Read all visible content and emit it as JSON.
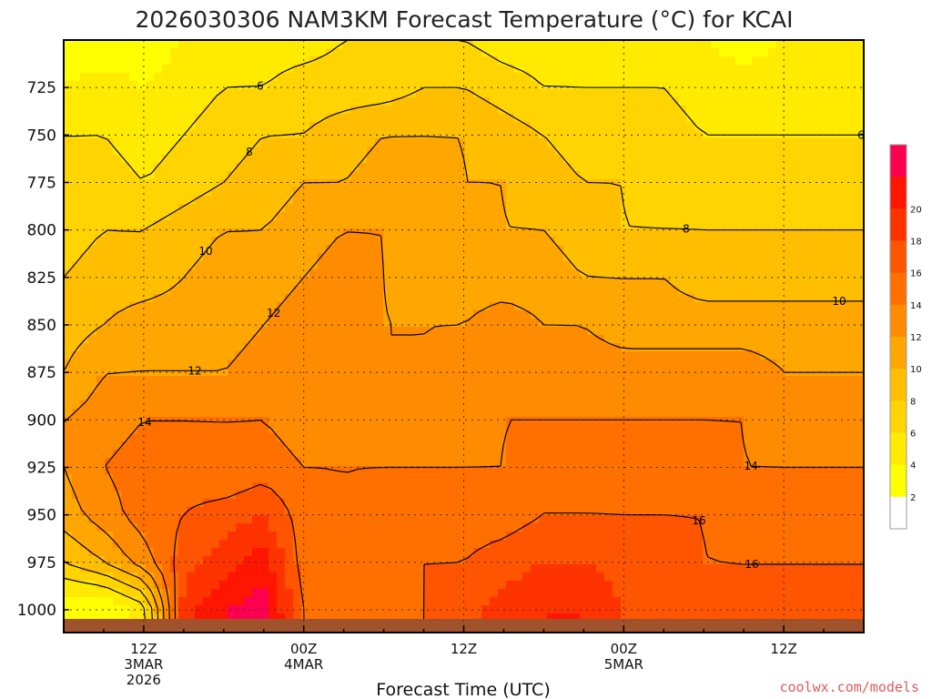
{
  "chart_data": {
    "type": "heatmap",
    "title": "2026030306 NAM3KM Forecast Temperature (°C) for KCAI",
    "xlabel": "Forecast Time (UTC)",
    "ylabel": "",
    "y_ticks": [
      725,
      750,
      775,
      800,
      825,
      850,
      875,
      900,
      925,
      950,
      975,
      1000
    ],
    "ylim": [
      1012,
      700
    ],
    "x_hours": [
      6,
      9,
      12,
      15,
      18,
      21,
      24,
      27,
      30,
      33,
      36,
      39,
      42,
      45,
      48,
      51,
      54,
      57,
      60
    ],
    "x_ticks": [
      {
        "hour": 12,
        "lines": [
          "12Z",
          "3MAR",
          "2026"
        ]
      },
      {
        "hour": 24,
        "lines": [
          "00Z",
          "4MAR"
        ]
      },
      {
        "hour": 36,
        "lines": [
          "12Z"
        ]
      },
      {
        "hour": 48,
        "lines": [
          "00Z",
          "5MAR"
        ]
      },
      {
        "hour": 60,
        "lines": [
          "12Z"
        ]
      }
    ],
    "xlim": [
      6,
      66
    ],
    "temperature_rows": [
      {
        "p": 700,
        "t": [
          3,
          2,
          3,
          4,
          5,
          5,
          5,
          6,
          6,
          6,
          6,
          5,
          5,
          5,
          5,
          5,
          4,
          3,
          4
        ]
      },
      {
        "p": 725,
        "t": [
          4,
          5,
          4,
          5,
          6,
          6,
          7,
          7,
          7,
          8,
          8,
          7,
          6,
          6,
          6,
          6,
          5,
          5,
          5
        ]
      },
      {
        "p": 750,
        "t": [
          6,
          6,
          5,
          6,
          7,
          8,
          8,
          9,
          10,
          10,
          10,
          9,
          8,
          7,
          7,
          7,
          6,
          6,
          6
        ]
      },
      {
        "p": 775,
        "t": [
          7,
          7,
          6,
          7,
          8,
          9,
          10,
          10,
          11,
          11,
          10,
          10,
          9,
          8,
          8,
          7,
          7,
          7,
          7
        ]
      },
      {
        "p": 800,
        "t": [
          7,
          8,
          8,
          9,
          10,
          10,
          11,
          12,
          12,
          11,
          11,
          10,
          10,
          9,
          8,
          8,
          8,
          8,
          8
        ]
      },
      {
        "p": 825,
        "t": [
          8,
          9,
          9,
          10,
          11,
          11,
          12,
          13,
          12,
          11,
          11,
          11,
          11,
          10,
          10,
          10,
          9,
          9,
          9
        ]
      },
      {
        "p": 850,
        "t": [
          9,
          10,
          11,
          11,
          11,
          12,
          13,
          13,
          12,
          12,
          12,
          13,
          12,
          12,
          11,
          11,
          11,
          11,
          11
        ]
      },
      {
        "p": 875,
        "t": [
          10,
          12,
          12,
          12,
          12,
          13,
          13,
          12,
          12,
          12,
          13,
          14,
          13,
          13,
          13,
          13,
          13,
          13,
          12
        ]
      },
      {
        "p": 900,
        "t": [
          12,
          13,
          14,
          14,
          14,
          14,
          13,
          13,
          13,
          13,
          13,
          14,
          14,
          14,
          14,
          14,
          14,
          14,
          13
        ]
      },
      {
        "p": 925,
        "t": [
          12,
          14,
          15,
          15,
          14,
          15,
          14,
          14,
          14,
          14,
          14,
          14,
          15,
          15,
          15,
          15,
          15,
          14,
          14
        ]
      },
      {
        "p": 950,
        "t": [
          11,
          13,
          15,
          16,
          17,
          18,
          15,
          14,
          15,
          15,
          15,
          15,
          16,
          16,
          16,
          16,
          16,
          15,
          15
        ]
      },
      {
        "p": 975,
        "t": [
          8,
          10,
          13,
          17,
          19,
          21,
          15,
          15,
          15,
          16,
          16,
          17,
          18,
          18,
          17,
          17,
          16,
          16,
          16
        ]
      },
      {
        "p": 1000,
        "t": [
          2,
          2,
          5,
          19,
          22,
          23,
          16,
          15,
          15,
          16,
          17,
          19,
          20,
          20,
          18,
          17,
          17,
          16,
          16
        ]
      }
    ],
    "contour_levels": [
      6,
      8,
      10,
      12,
      14,
      16
    ],
    "colorbar": {
      "labels": [
        "2",
        "4",
        "6",
        "8",
        "10",
        "12",
        "14",
        "16",
        "18",
        "20"
      ],
      "bands": [
        {
          "min": -99,
          "max": 2,
          "color": "#ffffff"
        },
        {
          "min": 2,
          "max": 4,
          "color": "#ffff00"
        },
        {
          "min": 4,
          "max": 6,
          "color": "#ffea00"
        },
        {
          "min": 6,
          "max": 8,
          "color": "#ffd400"
        },
        {
          "min": 8,
          "max": 10,
          "color": "#ffbf00"
        },
        {
          "min": 10,
          "max": 12,
          "color": "#ffa600"
        },
        {
          "min": 12,
          "max": 14,
          "color": "#ff8c00"
        },
        {
          "min": 14,
          "max": 16,
          "color": "#ff7000"
        },
        {
          "min": 16,
          "max": 18,
          "color": "#ff5400"
        },
        {
          "min": 18,
          "max": 20,
          "color": "#ff3300"
        },
        {
          "min": 20,
          "max": 22,
          "color": "#ff1500"
        },
        {
          "min": 22,
          "max": 99,
          "color": "#ff0050"
        }
      ]
    },
    "ground_color": "#a0522d",
    "grid": true
  },
  "credit": "coolwx.com/models"
}
